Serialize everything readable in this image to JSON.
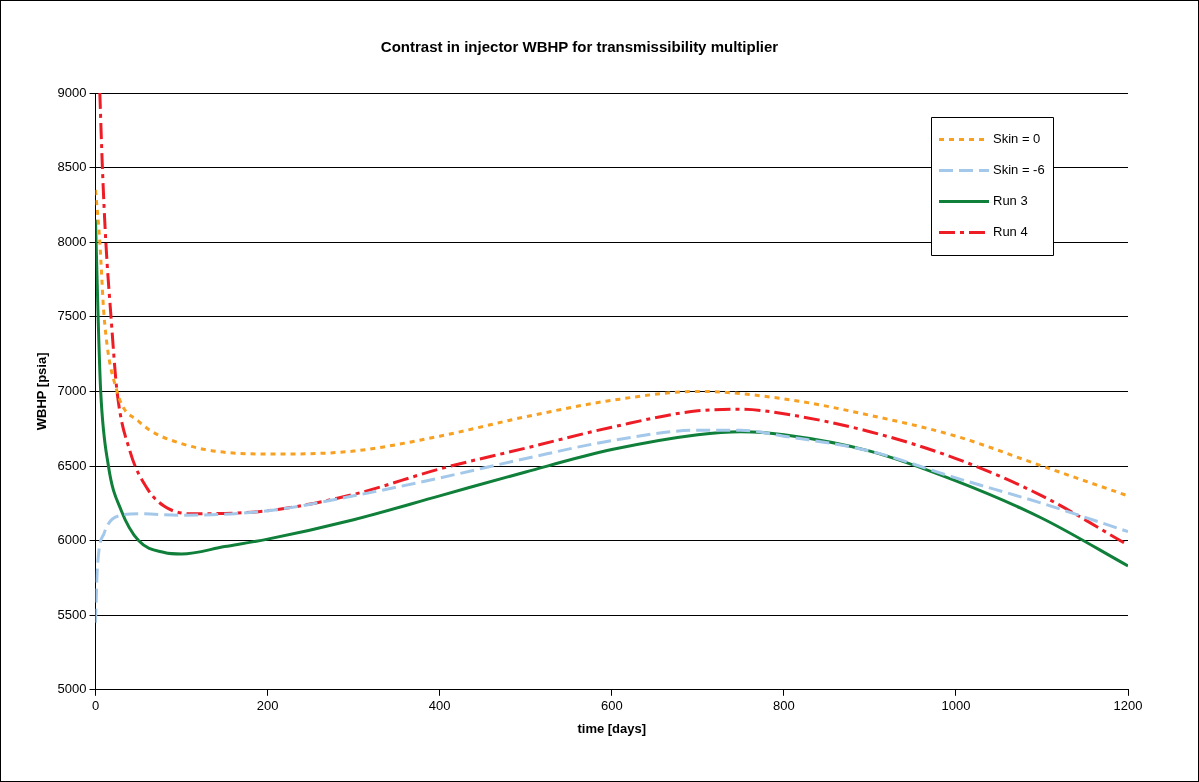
{
  "chart_data": {
    "type": "line",
    "title": "Contrast in injector WBHP for transmissibility multiplier",
    "xlabel": "time [days]",
    "ylabel": "WBHP [psia]",
    "xlim": [
      0,
      1200
    ],
    "xticks": [
      0,
      200,
      400,
      600,
      800,
      1000,
      1200
    ],
    "ylim": [
      5000,
      9000
    ],
    "yticks": [
      5000,
      5500,
      6000,
      6500,
      7000,
      7500,
      8000,
      8500,
      9000
    ],
    "grid": "y",
    "legend": "top right",
    "marker": "none",
    "series": [
      {
        "name": "Skin = 0",
        "color": "#f7a021",
        "line_style": "dotted",
        "x": [
          0,
          5,
          10,
          25,
          50,
          100,
          200,
          300,
          400,
          500,
          600,
          700,
          800,
          900,
          1000,
          1100,
          1200
        ],
        "values": [
          8350,
          8000,
          7500,
          7000,
          6800,
          6650,
          6580,
          6600,
          6700,
          6830,
          6940,
          7000,
          6950,
          6840,
          6700,
          6500,
          6300
        ]
      },
      {
        "name": "Skin = -6",
        "color": "#a3c8ea",
        "line_style": "dashed",
        "x": [
          0,
          2,
          10,
          30,
          50,
          100,
          200,
          300,
          400,
          500,
          600,
          700,
          750,
          800,
          900,
          1000,
          1100,
          1200
        ],
        "values": [
          5450,
          5800,
          6050,
          6170,
          6180,
          6170,
          6200,
          6300,
          6420,
          6550,
          6670,
          6740,
          6740,
          6700,
          6600,
          6420,
          6250,
          6060
        ]
      },
      {
        "name": "Run 3",
        "color": "#0f7f3a",
        "line_style": "solid",
        "x": [
          0,
          3,
          6,
          15,
          30,
          50,
          80,
          100,
          150,
          200,
          300,
          400,
          500,
          600,
          700,
          750,
          800,
          900,
          1000,
          1100,
          1200
        ],
        "values": [
          8150,
          7500,
          7000,
          6500,
          6200,
          6000,
          5920,
          5910,
          5960,
          6010,
          6140,
          6300,
          6460,
          6610,
          6710,
          6730,
          6710,
          6600,
          6400,
          6150,
          5830
        ]
      },
      {
        "name": "Run 4",
        "color": "#ee1c25",
        "line_style": "dashdot",
        "x": [
          5,
          8,
          12,
          18,
          25,
          40,
          60,
          80,
          110,
          200,
          300,
          400,
          500,
          600,
          700,
          750,
          800,
          900,
          1000,
          1100,
          1200
        ],
        "values": [
          9000,
          8500,
          8000,
          7500,
          7000,
          6600,
          6350,
          6230,
          6180,
          6200,
          6310,
          6480,
          6620,
          6760,
          6870,
          6880,
          6850,
          6730,
          6550,
          6300,
          5970
        ]
      }
    ]
  }
}
